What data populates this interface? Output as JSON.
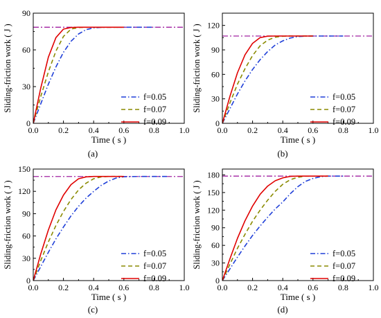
{
  "colors": {
    "reference": "#a020a0",
    "f005": "#1f3fd8",
    "f007": "#8a8a00",
    "f009": "#e00000"
  },
  "chart_data": [
    {
      "type": "line",
      "panel_label": "(a)",
      "xlabel": "Time ( s )",
      "ylabel": "Sliding-friction work ( J )",
      "xlim": [
        0,
        1.0
      ],
      "ylim": [
        0,
        90
      ],
      "xticks": [
        "0.0",
        "0.2",
        "0.4",
        "0.6",
        "0.8",
        "1.0"
      ],
      "yticks": [
        "0",
        "30",
        "60",
        "90"
      ],
      "grid": false,
      "legend_position": "bottom-right",
      "reference_line": {
        "y": 78.5,
        "style": "dash-dot"
      },
      "series": [
        {
          "name": "f=0.05",
          "style": "dash-dot",
          "x": [
            0,
            0.05,
            0.1,
            0.15,
            0.2,
            0.25,
            0.3,
            0.35,
            0.4,
            0.45,
            0.5,
            0.6,
            0.7,
            0.8
          ],
          "y": [
            0,
            16,
            32,
            46,
            58,
            67,
            73,
            76.5,
            78,
            78.4,
            78.5,
            78.5,
            78.5,
            78.5
          ]
        },
        {
          "name": "f=0.07",
          "style": "dashed",
          "x": [
            0,
            0.05,
            0.1,
            0.15,
            0.2,
            0.25,
            0.3,
            0.35,
            0.4,
            0.5,
            0.6
          ],
          "y": [
            0,
            22,
            42,
            59,
            71,
            77,
            78.3,
            78.5,
            78.5,
            78.5,
            78.5
          ]
        },
        {
          "name": "f=0.09",
          "style": "solid",
          "x": [
            0,
            0.05,
            0.1,
            0.15,
            0.2,
            0.25,
            0.3,
            0.4,
            0.6
          ],
          "y": [
            0,
            29,
            54,
            70,
            77,
            78.3,
            78.5,
            78.5,
            78.5
          ]
        }
      ]
    },
    {
      "type": "line",
      "panel_label": "(b)",
      "xlabel": "Time ( s )",
      "ylabel": "Sliding-friction work ( J )",
      "xlim": [
        0,
        1.0
      ],
      "ylim": [
        0,
        135
      ],
      "xticks": [
        "0.0",
        "0.2",
        "0.4",
        "0.6",
        "0.8",
        "1.0"
      ],
      "yticks": [
        "0",
        "30",
        "60",
        "90",
        "120"
      ],
      "grid": false,
      "legend_position": "bottom-right",
      "reference_line": {
        "y": 107,
        "style": "dash-dot"
      },
      "series": [
        {
          "name": "f=0.05",
          "style": "dash-dot",
          "x": [
            0,
            0.05,
            0.1,
            0.15,
            0.2,
            0.25,
            0.3,
            0.35,
            0.4,
            0.45,
            0.5,
            0.55,
            0.6,
            0.8
          ],
          "y": [
            0,
            18,
            36,
            52,
            66,
            78,
            88,
            96,
            101,
            104.5,
            106.3,
            106.9,
            107,
            107
          ]
        },
        {
          "name": "f=0.07",
          "style": "dashed",
          "x": [
            0,
            0.05,
            0.1,
            0.15,
            0.2,
            0.25,
            0.3,
            0.35,
            0.4,
            0.45,
            0.6
          ],
          "y": [
            0,
            25,
            48,
            67,
            83,
            95,
            102,
            105.5,
            106.7,
            107,
            107
          ]
        },
        {
          "name": "f=0.09",
          "style": "solid",
          "x": [
            0,
            0.05,
            0.1,
            0.15,
            0.2,
            0.25,
            0.3,
            0.35,
            0.45,
            0.6
          ],
          "y": [
            0,
            33,
            62,
            84,
            98,
            105,
            106.8,
            107,
            107,
            107
          ]
        }
      ]
    },
    {
      "type": "line",
      "panel_label": "(c)",
      "xlabel": "Time ( s )",
      "ylabel": "Sliding-friction work ( J )",
      "xlim": [
        0,
        1.0
      ],
      "ylim": [
        0,
        150
      ],
      "xticks": [
        "0.0",
        "0.2",
        "0.4",
        "0.6",
        "0.8",
        "1.0"
      ],
      "yticks": [
        "0",
        "30",
        "60",
        "90",
        "120",
        "150"
      ],
      "grid": false,
      "legend_position": "bottom-right",
      "reference_line": {
        "y": 140,
        "style": "dash-dot"
      },
      "series": [
        {
          "name": "f=0.05",
          "style": "dash-dot",
          "x": [
            0,
            0.05,
            0.1,
            0.15,
            0.2,
            0.25,
            0.3,
            0.35,
            0.4,
            0.45,
            0.5,
            0.55,
            0.6,
            0.7,
            0.9
          ],
          "y": [
            0,
            19,
            38,
            56,
            72,
            87,
            100,
            111,
            120,
            128,
            134,
            138,
            139.7,
            140,
            140
          ]
        },
        {
          "name": "f=0.07",
          "style": "dashed",
          "x": [
            0,
            0.05,
            0.1,
            0.15,
            0.2,
            0.25,
            0.3,
            0.35,
            0.4,
            0.45,
            0.5,
            0.6
          ],
          "y": [
            0,
            27,
            52,
            74,
            93,
            109,
            122,
            131,
            137,
            139.5,
            140,
            140
          ]
        },
        {
          "name": "f=0.09",
          "style": "solid",
          "x": [
            0,
            0.05,
            0.1,
            0.15,
            0.2,
            0.25,
            0.3,
            0.35,
            0.4,
            0.5,
            0.6
          ],
          "y": [
            0,
            36,
            68,
            95,
            115,
            129,
            137,
            139.5,
            140,
            140,
            140
          ]
        }
      ]
    },
    {
      "type": "line",
      "panel_label": "(d)",
      "xlabel": "Time ( s )",
      "ylabel": "Sliding-friction work ( J )",
      "xlim": [
        0,
        1.0
      ],
      "ylim": [
        0,
        190
      ],
      "xticks": [
        "0.0",
        "0.2",
        "0.4",
        "0.6",
        "0.8",
        "1.0"
      ],
      "yticks": [
        "0",
        "30",
        "60",
        "90",
        "120",
        "150",
        "180"
      ],
      "grid": false,
      "legend_position": "bottom-right",
      "reference_line": {
        "y": 178,
        "style": "dash-dot"
      },
      "series": [
        {
          "name": "f=0.05",
          "style": "dash-dot",
          "x": [
            0,
            0.05,
            0.1,
            0.15,
            0.2,
            0.25,
            0.3,
            0.35,
            0.4,
            0.45,
            0.5,
            0.55,
            0.6,
            0.65,
            0.7,
            0.8
          ],
          "y": [
            0,
            20,
            40,
            59,
            77,
            93,
            108,
            122,
            134,
            148,
            160,
            169,
            174,
            177,
            178,
            178
          ]
        },
        {
          "name": "f=0.07",
          "style": "dashed",
          "x": [
            0,
            0.05,
            0.1,
            0.15,
            0.2,
            0.25,
            0.3,
            0.35,
            0.4,
            0.45,
            0.5,
            0.55,
            0.7
          ],
          "y": [
            0,
            28,
            55,
            79,
            101,
            120,
            137,
            152,
            164,
            172,
            176,
            177.8,
            178
          ]
        },
        {
          "name": "f=0.09",
          "style": "solid",
          "x": [
            0,
            0.05,
            0.1,
            0.15,
            0.2,
            0.25,
            0.3,
            0.35,
            0.4,
            0.45,
            0.5,
            0.7
          ],
          "y": [
            0,
            37,
            72,
            102,
            127,
            147,
            161,
            170,
            175,
            177.5,
            178,
            178
          ]
        }
      ]
    }
  ]
}
